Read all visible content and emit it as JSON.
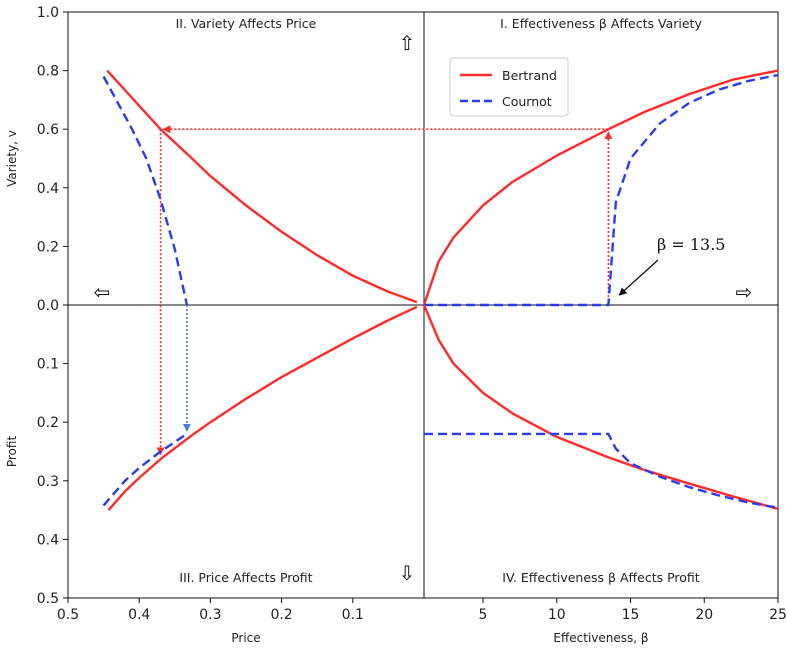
{
  "chart_data": {
    "type": "line",
    "quadrant_titles": {
      "q1": "I. Effectiveness β Affects Variety",
      "q2": "II. Variety Affects Price",
      "q3": "III. Price Affects Profit",
      "q4": "IV. Effectiveness β Affects Profit"
    },
    "axes": {
      "variety": {
        "label": "Variety, v",
        "range": [
          0.0,
          1.0
        ],
        "ticks": [
          "0.0",
          "0.2",
          "0.4",
          "0.6",
          "0.8",
          "1.0"
        ]
      },
      "profit": {
        "label": "Profit",
        "range": [
          0.0,
          0.5
        ],
        "ticks": [
          "0.1",
          "0.2",
          "0.3",
          "0.4",
          "0.5"
        ]
      },
      "price": {
        "label": "Price",
        "range": [
          0.5,
          0.0
        ],
        "ticks": [
          "0.5",
          "0.4",
          "0.3",
          "0.2",
          "0.1"
        ]
      },
      "effectiveness": {
        "label": "Effectiveness, β",
        "range": [
          1,
          25
        ],
        "ticks": [
          "5",
          "10",
          "15",
          "20",
          "25"
        ]
      }
    },
    "legend": {
      "placement": "upper-left of quadrant I",
      "entries": [
        {
          "name": "Bertrand",
          "color": "#ff2a2a",
          "dash": "solid"
        },
        {
          "name": "Cournot",
          "color": "#2a3cf0",
          "dash": "dashed"
        }
      ]
    },
    "series": {
      "q1_variety_vs_beta": [
        {
          "name": "Bertrand",
          "x": [
            1,
            2,
            3,
            5,
            7,
            10,
            13.5,
            16,
            19,
            22,
            25
          ],
          "y": [
            0.0,
            0.15,
            0.23,
            0.34,
            0.42,
            0.51,
            0.6,
            0.66,
            0.72,
            0.77,
            0.8
          ]
        },
        {
          "name": "Cournot",
          "x": [
            1,
            5,
            10,
            13.5,
            14,
            15,
            17,
            19,
            21,
            23,
            25
          ],
          "y": [
            0.0,
            0.0,
            0.0,
            0.0,
            0.35,
            0.5,
            0.62,
            0.69,
            0.735,
            0.765,
            0.785
          ]
        }
      ],
      "q2_variety_vs_price": [
        {
          "name": "Bertrand",
          "x": [
            0.445,
            0.4,
            0.37,
            0.33,
            0.3,
            0.25,
            0.2,
            0.15,
            0.1,
            0.05,
            0.01
          ],
          "y": [
            0.8,
            0.68,
            0.6,
            0.51,
            0.44,
            0.34,
            0.25,
            0.17,
            0.1,
            0.045,
            0.01
          ]
        },
        {
          "name": "Cournot",
          "x": [
            0.45,
            0.43,
            0.41,
            0.39,
            0.37,
            0.35,
            0.333
          ],
          "y": [
            0.78,
            0.69,
            0.6,
            0.5,
            0.36,
            0.19,
            0.0
          ]
        }
      ],
      "q3_profit_vs_price": [
        {
          "name": "Bertrand",
          "x": [
            0.443,
            0.42,
            0.4,
            0.37,
            0.33,
            0.3,
            0.25,
            0.2,
            0.15,
            0.1,
            0.05,
            0.01
          ],
          "y": [
            0.35,
            0.318,
            0.295,
            0.263,
            0.226,
            0.2,
            0.16,
            0.123,
            0.09,
            0.057,
            0.026,
            0.003
          ]
        },
        {
          "name": "Cournot",
          "x": [
            0.45,
            0.42,
            0.4,
            0.37,
            0.333
          ],
          "y": [
            0.342,
            0.3,
            0.278,
            0.25,
            0.22
          ]
        }
      ],
      "q4_profit_vs_beta": [
        {
          "name": "Bertrand",
          "x": [
            1,
            2,
            3,
            5,
            7,
            10,
            13.5,
            16,
            19,
            22,
            25
          ],
          "y": [
            0.0,
            0.06,
            0.1,
            0.15,
            0.185,
            0.225,
            0.26,
            0.282,
            0.305,
            0.327,
            0.348
          ]
        },
        {
          "name": "Cournot",
          "x": [
            1,
            13.5,
            14,
            15,
            17,
            19,
            21,
            23,
            25
          ],
          "y": [
            0.22,
            0.22,
            0.245,
            0.27,
            0.293,
            0.311,
            0.325,
            0.337,
            0.346
          ]
        }
      ]
    },
    "guides": {
      "bertrand_path": {
        "beta": 13.5,
        "variety": 0.6,
        "price": 0.37,
        "profit": 0.26,
        "color": "#ff2a2a"
      },
      "cournot_path": {
        "price": 0.333,
        "variety": 0.0,
        "profit": 0.22,
        "color": "#4a7fd0"
      }
    },
    "annotation": {
      "text": "β = 13.5",
      "points_to": {
        "beta": 13.5,
        "variety": 0.0
      }
    },
    "direction_arrows": {
      "up": "⇧",
      "down": "⇩",
      "left": "⇦",
      "right": "⇨"
    }
  }
}
